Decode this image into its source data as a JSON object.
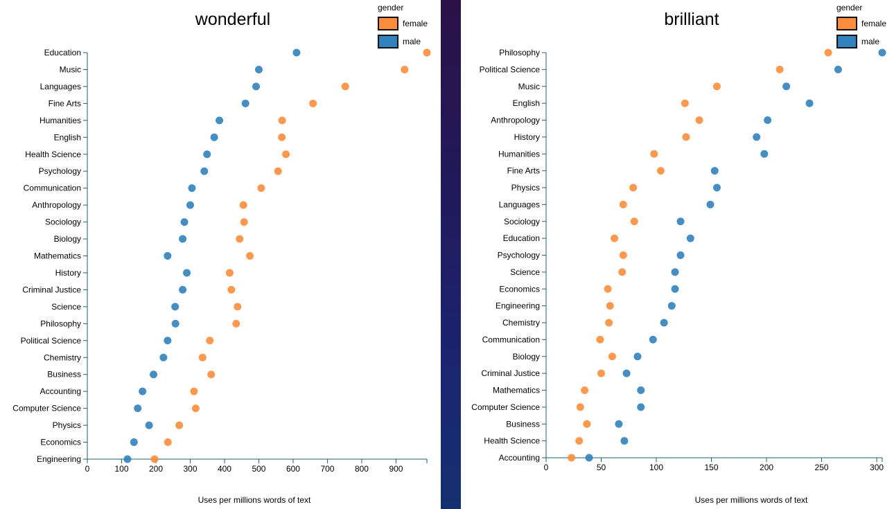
{
  "colors": {
    "female": "#fd8d3c",
    "male": "#3182bd",
    "axis": "#1f5f6b"
  },
  "legend": {
    "title": "gender",
    "items": [
      "female",
      "male"
    ]
  },
  "chart_data": [
    {
      "type": "scatter",
      "title": "wonderful",
      "xlabel": "Uses per millions words of text",
      "ylabel": "",
      "xlim": [
        0,
        990
      ],
      "xticks": [
        0,
        100,
        200,
        300,
        400,
        500,
        600,
        700,
        800,
        900
      ],
      "categories": [
        "Education",
        "Music",
        "Languages",
        "Fine Arts",
        "Humanities",
        "English",
        "Health Science",
        "Psychology",
        "Communication",
        "Anthropology",
        "Sociology",
        "Biology",
        "Mathematics",
        "History",
        "Criminal Justice",
        "Science",
        "Philosophy",
        "Political Science",
        "Chemistry",
        "Business",
        "Accounting",
        "Computer Science",
        "Physics",
        "Economics",
        "Engineering"
      ],
      "series": [
        {
          "name": "female",
          "values": [
            990,
            925,
            752,
            658,
            568,
            567,
            579,
            556,
            507,
            455,
            457,
            444,
            474,
            415,
            420,
            438,
            434,
            357,
            336,
            361,
            311,
            316,
            268,
            235,
            196
          ]
        },
        {
          "name": "male",
          "values": [
            610,
            500,
            492,
            461,
            385,
            370,
            349,
            341,
            305,
            300,
            283,
            278,
            234,
            290,
            278,
            256,
            257,
            234,
            222,
            193,
            161,
            147,
            180,
            136,
            117
          ]
        }
      ],
      "legend_position": "top-right",
      "grid": false
    },
    {
      "type": "scatter",
      "title": "brilliant",
      "xlabel": "Uses per millions words of text",
      "ylabel": "",
      "xlim": [
        0,
        305
      ],
      "xticks": [
        0,
        50,
        100,
        150,
        200,
        250,
        300
      ],
      "categories": [
        "Philosophy",
        "Political Science",
        "Music",
        "English",
        "Anthropology",
        "History",
        "Humanities",
        "Fine Arts",
        "Physics",
        "Languages",
        "Sociology",
        "Education",
        "Psychology",
        "Science",
        "Economics",
        "Engineering",
        "Chemistry",
        "Communication",
        "Biology",
        "Criminal Justice",
        "Mathematics",
        "Computer Science",
        "Business",
        "Health Science",
        "Accounting"
      ],
      "series": [
        {
          "name": "female",
          "values": [
            256,
            212,
            155,
            126,
            139,
            127,
            98,
            104,
            79,
            70,
            80,
            62,
            70,
            69,
            56,
            58,
            57,
            49,
            60,
            50,
            35,
            31,
            37,
            30,
            23
          ]
        },
        {
          "name": "male",
          "values": [
            305,
            265,
            218,
            239,
            201,
            191,
            198,
            153,
            155,
            149,
            122,
            131,
            122,
            117,
            117,
            114,
            107,
            97,
            83,
            73,
            86,
            86,
            66,
            71,
            39
          ]
        }
      ],
      "legend_position": "top-right",
      "grid": false
    }
  ]
}
